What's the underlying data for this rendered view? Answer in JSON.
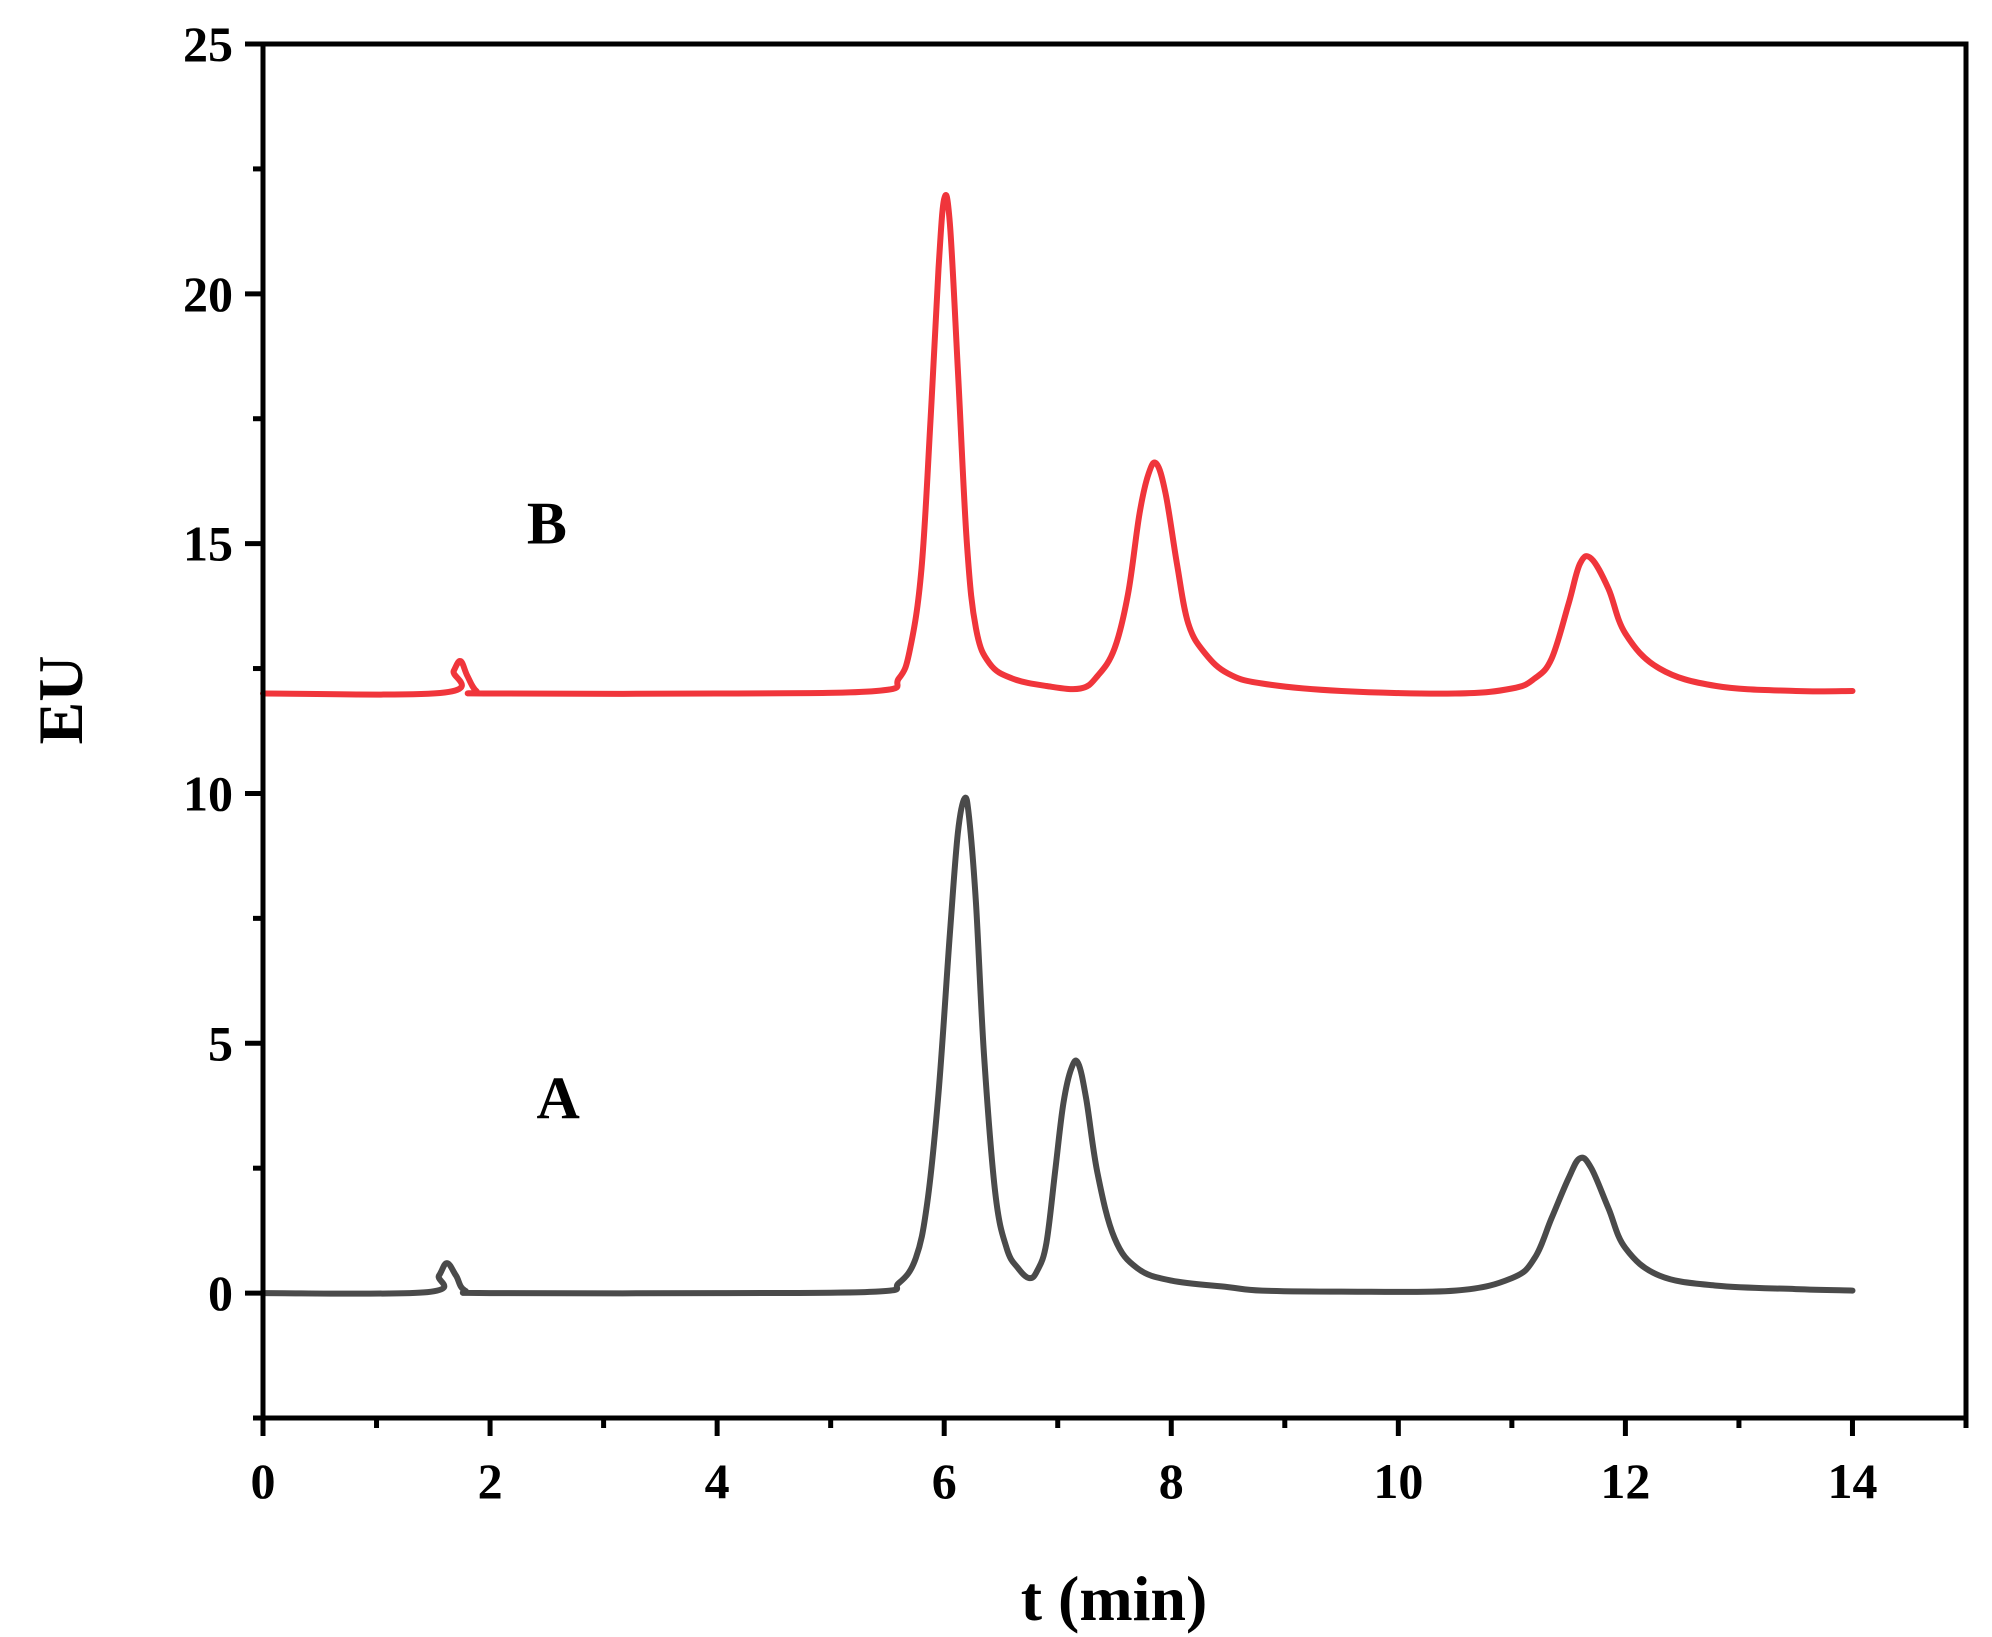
{
  "chart_data": {
    "type": "line",
    "title": "",
    "xlabel": "t (min)",
    "ylabel": "EU",
    "xlim": [
      0,
      15
    ],
    "ylim": [
      -2.5,
      25
    ],
    "x_ticks": [
      0,
      2,
      4,
      6,
      8,
      10,
      12,
      14
    ],
    "x_minor_ticks": [
      1,
      3,
      5,
      7,
      9,
      11,
      13,
      15
    ],
    "y_ticks": [
      0,
      5,
      10,
      15,
      20,
      25
    ],
    "y_minor_ticks": [
      -2.5,
      2.5,
      7.5,
      12.5,
      17.5,
      22.5
    ],
    "x_tick_labels": [
      "0",
      "2",
      "4",
      "6",
      "8",
      "10",
      "12",
      "14"
    ],
    "y_tick_labels": [
      "0",
      "5",
      "10",
      "15",
      "20",
      "25"
    ],
    "grid": false,
    "annotations": [
      {
        "text": "B",
        "x": 2.5,
        "y": 15
      },
      {
        "text": "A",
        "x": 2.6,
        "y": 3.5
      }
    ],
    "series": [
      {
        "label": "A",
        "color": "#4a4a4a",
        "x": [
          0,
          1.45,
          1.55,
          1.62,
          1.7,
          1.78,
          2.0,
          4.0,
          5.4,
          5.6,
          5.75,
          5.85,
          5.95,
          6.05,
          6.12,
          6.18,
          6.22,
          6.28,
          6.35,
          6.45,
          6.55,
          6.65,
          6.75,
          6.82,
          6.9,
          6.98,
          7.05,
          7.12,
          7.18,
          7.25,
          7.35,
          7.5,
          7.7,
          8.0,
          8.5,
          8.8,
          9.5,
          10.5,
          11.0,
          11.2,
          11.35,
          11.5,
          11.6,
          11.7,
          11.85,
          12.0,
          12.3,
          12.8,
          13.5,
          14.0
        ],
        "y": [
          0,
          0.02,
          0.35,
          0.6,
          0.35,
          0.05,
          0,
          0,
          0.03,
          0.2,
          0.7,
          1.8,
          4.0,
          7.2,
          9.2,
          9.9,
          9.5,
          7.8,
          4.8,
          2.0,
          0.9,
          0.5,
          0.3,
          0.45,
          1.0,
          2.5,
          3.8,
          4.5,
          4.6,
          3.9,
          2.4,
          1.1,
          0.5,
          0.25,
          0.12,
          0.05,
          0.03,
          0.05,
          0.3,
          0.7,
          1.5,
          2.3,
          2.7,
          2.5,
          1.7,
          0.9,
          0.35,
          0.15,
          0.08,
          0.05
        ]
      },
      {
        "label": "B",
        "color": "#f0353b",
        "x": [
          0,
          1.6,
          1.68,
          1.74,
          1.8,
          1.88,
          2.0,
          4.0,
          5.4,
          5.6,
          5.7,
          5.8,
          5.88,
          5.95,
          6.0,
          6.05,
          6.12,
          6.2,
          6.28,
          6.4,
          6.6,
          6.9,
          7.2,
          7.35,
          7.5,
          7.62,
          7.72,
          7.8,
          7.87,
          7.95,
          8.05,
          8.15,
          8.3,
          8.5,
          8.8,
          9.5,
          10.5,
          11.0,
          11.2,
          11.35,
          11.5,
          11.6,
          11.7,
          11.85,
          12.0,
          12.3,
          12.8,
          13.5,
          14.0
        ],
        "y": [
          12,
          12.02,
          12.45,
          12.65,
          12.35,
          12.05,
          12,
          12,
          12.05,
          12.3,
          12.9,
          14.5,
          17.5,
          20.5,
          21.9,
          21.4,
          18.5,
          15.0,
          13.3,
          12.6,
          12.3,
          12.15,
          12.1,
          12.35,
          12.9,
          14.0,
          15.6,
          16.4,
          16.6,
          16.0,
          14.6,
          13.4,
          12.8,
          12.4,
          12.2,
          12.05,
          12.0,
          12.1,
          12.3,
          12.7,
          13.8,
          14.6,
          14.7,
          14.1,
          13.2,
          12.5,
          12.15,
          12.05,
          12.05
        ]
      }
    ]
  }
}
